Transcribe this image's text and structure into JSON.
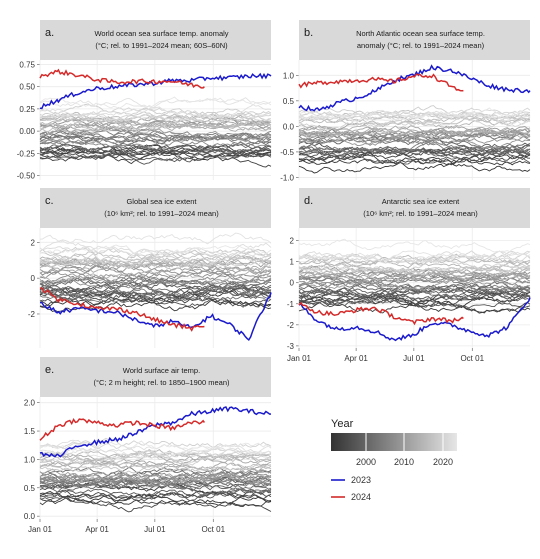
{
  "colors": {
    "y2023": "#1a1acc",
    "y2024": "#d42a2a",
    "strip": "#d9d9d9",
    "grid": "#ebebeb",
    "old_gray": "#333333",
    "new_gray": "#e6e6e6"
  },
  "legend": {
    "title": "Year",
    "gradient_ticks": [
      "2000",
      "2010",
      "2020"
    ],
    "series": [
      {
        "name": "2023",
        "color": "#1a1acc"
      },
      {
        "name": "2024",
        "color": "#d42a2a"
      }
    ]
  },
  "x_ticks": [
    "Jan 01",
    "Apr 01",
    "Jul 01",
    "Oct 01"
  ],
  "chart_data": [
    {
      "type": "line",
      "panel": "a.",
      "title_line1": "World ocean sea surface temp. anomaly",
      "title_line2": "(°C; rel. to 1991–2024 mean; 60S–60N)",
      "ylim": [
        -0.55,
        0.8
      ],
      "yticks": [
        "-0.50",
        "-0.25",
        "0.00",
        "0.25",
        "0.50",
        "0.75"
      ],
      "ytick_values": [
        -0.5,
        -0.25,
        0,
        0.25,
        0.5,
        0.75
      ],
      "x_axis_shown": false,
      "background_years": {
        "count": 44,
        "range": [
          -0.4,
          0.35
        ]
      },
      "series": [
        {
          "name": "2023",
          "x": [
            1,
            30,
            60,
            90,
            120,
            150,
            180,
            210,
            240,
            270,
            300,
            330,
            365
          ],
          "y": [
            0.27,
            0.35,
            0.43,
            0.48,
            0.5,
            0.52,
            0.54,
            0.57,
            0.57,
            0.6,
            0.6,
            0.62,
            0.62
          ]
        },
        {
          "name": "2024",
          "x": [
            1,
            30,
            60,
            90,
            120,
            150,
            180,
            210,
            240,
            260
          ],
          "y": [
            0.62,
            0.67,
            0.63,
            0.58,
            0.55,
            0.56,
            0.56,
            0.56,
            0.52,
            0.5
          ]
        }
      ]
    },
    {
      "type": "line",
      "panel": "b.",
      "title_line1": "North Atlantic ocean sea surface temp.",
      "title_line2": "anomaly (°C; rel. to 1991–2024 mean)",
      "ylim": [
        -1.05,
        1.3
      ],
      "yticks": [
        "-1.0",
        "-0.5",
        "0.0",
        "0.5",
        "1.0"
      ],
      "ytick_values": [
        -1,
        -0.5,
        0,
        0.5,
        1
      ],
      "x_axis_shown": false,
      "background_years": {
        "count": 44,
        "range": [
          -0.9,
          0.5
        ]
      },
      "series": [
        {
          "name": "2023",
          "x": [
            1,
            30,
            60,
            90,
            120,
            150,
            180,
            210,
            240,
            270,
            300,
            330,
            365
          ],
          "y": [
            0.38,
            0.32,
            0.45,
            0.55,
            0.68,
            0.9,
            1.0,
            1.15,
            1.1,
            0.95,
            0.8,
            0.72,
            0.7
          ]
        },
        {
          "name": "2024",
          "x": [
            1,
            30,
            60,
            90,
            120,
            150,
            180,
            210,
            240,
            260
          ],
          "y": [
            0.8,
            0.85,
            0.88,
            0.9,
            0.92,
            0.88,
            0.98,
            1.0,
            0.78,
            0.7
          ]
        }
      ]
    },
    {
      "type": "line",
      "panel": "c.",
      "title_line1": "Global sea ice extent",
      "title_line2": "(10⁶ km²; rel. to 1991–2024 mean)",
      "ylim": [
        -3.9,
        2.8
      ],
      "yticks": [
        "-2",
        "0",
        "2"
      ],
      "ytick_values": [
        -2,
        0,
        2
      ],
      "x_axis_shown": false,
      "background_years": {
        "count": 44,
        "range": [
          -2.2,
          2.3
        ]
      },
      "series": [
        {
          "name": "2023",
          "x": [
            1,
            30,
            60,
            90,
            120,
            150,
            180,
            210,
            240,
            270,
            300,
            330,
            365
          ],
          "y": [
            -1.4,
            -1.9,
            -1.7,
            -1.8,
            -1.9,
            -2.3,
            -2.7,
            -2.4,
            -2.8,
            -2.1,
            -2.6,
            -3.4,
            -0.8
          ]
        },
        {
          "name": "2024",
          "x": [
            1,
            30,
            60,
            90,
            120,
            150,
            180,
            210,
            240,
            260
          ],
          "y": [
            -0.5,
            -1.2,
            -1.4,
            -1.7,
            -1.7,
            -1.9,
            -2.3,
            -2.6,
            -2.8,
            -2.7
          ]
        }
      ]
    },
    {
      "type": "line",
      "panel": "d.",
      "title_line1": "Antarctic sea ice extent",
      "title_line2": "(10⁶ km²; rel. to 1991–2024 mean)",
      "ylim": [
        -3.1,
        2.6
      ],
      "yticks": [
        "-3",
        "-2",
        "-1",
        "0",
        "1",
        "2"
      ],
      "ytick_values": [
        -3,
        -2,
        -1,
        0,
        1,
        2
      ],
      "x_axis_shown": true,
      "background_years": {
        "count": 44,
        "range": [
          -1.6,
          1.9
        ]
      },
      "series": [
        {
          "name": "2023",
          "x": [
            1,
            30,
            60,
            90,
            120,
            150,
            180,
            210,
            240,
            270,
            300,
            330,
            365
          ],
          "y": [
            -1.0,
            -1.8,
            -2.2,
            -2.1,
            -2.3,
            -2.7,
            -2.5,
            -1.9,
            -2.0,
            -2.3,
            -2.5,
            -2.1,
            -0.7
          ]
        },
        {
          "name": "2024",
          "x": [
            1,
            30,
            60,
            90,
            120,
            150,
            180,
            210,
            240,
            260
          ],
          "y": [
            -1.0,
            -1.4,
            -1.5,
            -1.3,
            -1.2,
            -1.6,
            -1.9,
            -1.7,
            -1.8,
            -1.7
          ]
        }
      ]
    },
    {
      "type": "line",
      "panel": "e.",
      "title_line1": "World surface air temp.",
      "title_line2": "(°C; 2 m height; rel. to 1850–1900 mean)",
      "ylim": [
        -0.05,
        2.1
      ],
      "yticks": [
        "0.0",
        "0.5",
        "1.0",
        "1.5",
        "2.0"
      ],
      "ytick_values": [
        0,
        0.5,
        1,
        1.5,
        2
      ],
      "x_axis_shown": true,
      "background_years": {
        "count": 44,
        "range": [
          0.1,
          1.4
        ]
      },
      "series": [
        {
          "name": "2023",
          "x": [
            1,
            30,
            60,
            90,
            120,
            150,
            180,
            210,
            240,
            270,
            300,
            330,
            365
          ],
          "y": [
            1.1,
            1.05,
            1.25,
            1.3,
            1.35,
            1.45,
            1.6,
            1.65,
            1.8,
            1.85,
            1.9,
            1.85,
            1.8
          ]
        },
        {
          "name": "2024",
          "x": [
            1,
            30,
            60,
            90,
            120,
            150,
            180,
            210,
            240,
            260
          ],
          "y": [
            1.35,
            1.6,
            1.7,
            1.65,
            1.6,
            1.65,
            1.6,
            1.55,
            1.65,
            1.65
          ]
        }
      ]
    }
  ]
}
